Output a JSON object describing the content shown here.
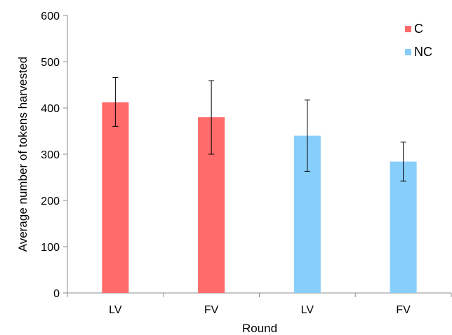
{
  "chart_data": {
    "type": "bar",
    "title": "",
    "xlabel": "Round",
    "ylabel": "Average number of tokens harvested",
    "ylim": [
      0,
      600
    ],
    "yticks": [
      0,
      100,
      200,
      300,
      400,
      500,
      600
    ],
    "grid": false,
    "legend_position": "top-right",
    "series": [
      {
        "name": "C",
        "color": "#ff6b6b"
      },
      {
        "name": "NC",
        "color": "#87cefa"
      }
    ],
    "bars": [
      {
        "category": "LV",
        "series": "C",
        "value": 412,
        "error_low": 360,
        "error_high": 466
      },
      {
        "category": "FV",
        "series": "C",
        "value": 380,
        "error_low": 300,
        "error_high": 459
      },
      {
        "category": "LV",
        "series": "NC",
        "value": 340,
        "error_low": 263,
        "error_high": 417
      },
      {
        "category": "FV",
        "series": "NC",
        "value": 284,
        "error_low": 242,
        "error_high": 326
      }
    ]
  }
}
